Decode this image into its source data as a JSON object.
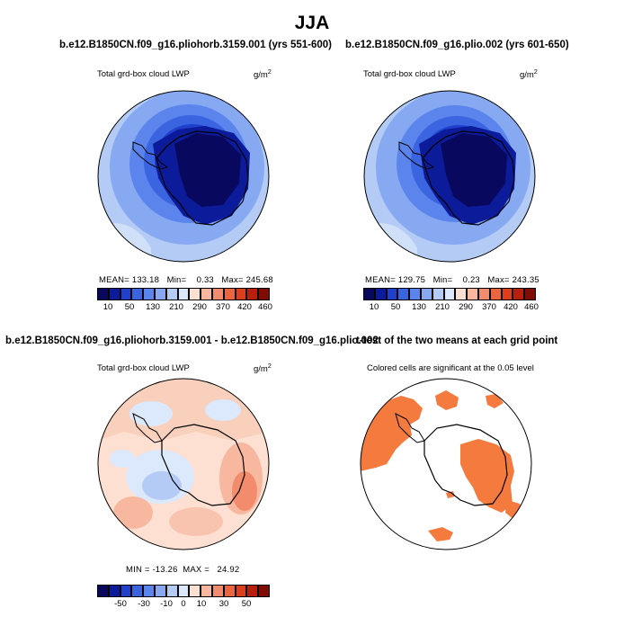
{
  "title": "JJA",
  "panels": {
    "top_left": {
      "title": "b.e12.B1850CN.f09_g16.pliohorb.3159.001 (yrs 551-600)",
      "left_label": "Total grd-box cloud LWP",
      "right_label": "g/m",
      "right_label_sup": "2",
      "stats": "MEAN= 133.18   Min=    0.33   Max= 245.68",
      "colorbar_labels": [
        "10",
        "50",
        "130",
        "210",
        "290",
        "370",
        "420",
        "460"
      ]
    },
    "top_right": {
      "title": "b.e12.B1850CN.f09_g16.plio.002 (yrs 601-650)",
      "left_label": "Total grd-box cloud LWP",
      "right_label": "g/m",
      "right_label_sup": "2",
      "stats": "MEAN= 129.75   Min=    0.23   Max= 243.35",
      "colorbar_labels": [
        "10",
        "50",
        "130",
        "210",
        "290",
        "370",
        "420",
        "460"
      ]
    },
    "bottom_left": {
      "title": "b.e12.B1850CN.f09_g16.pliohorb.3159.001 - b.e12.B1850CN.f09_g16.plio.002",
      "left_label": "Total grd-box cloud LWP",
      "right_label": "g/m",
      "right_label_sup": "2",
      "stats": "MIN = -13.26  MAX =   24.92",
      "colorbar_labels": [
        "-50",
        "-30",
        "-10",
        "0",
        "10",
        "30",
        "50"
      ]
    },
    "bottom_right": {
      "title": "t-test of the two means at each grid point",
      "subtitle": "Colored cells are significant at the 0.05 level"
    }
  },
  "colors": {
    "abs_scale": [
      "#08085e",
      "#0b1b9a",
      "#1f3fcc",
      "#3a64e0",
      "#5b85ec",
      "#86a9f2",
      "#b4cbf6",
      "#dce8fb",
      "#fde0d2",
      "#f8b8a0",
      "#f28c6c",
      "#ec6440",
      "#de3e1c",
      "#b8200c",
      "#7f0d06"
    ],
    "diff_scale": [
      "#08085e",
      "#0b1b9a",
      "#1f3fcc",
      "#3a64e0",
      "#5b85ec",
      "#86a9f2",
      "#b4cbf6",
      "#dce8fb",
      "#fde0d2",
      "#f8b8a0",
      "#f28c6c",
      "#ec6440",
      "#de3e1c",
      "#b8200c",
      "#7f0d06"
    ],
    "significant": "#f57a3e"
  }
}
